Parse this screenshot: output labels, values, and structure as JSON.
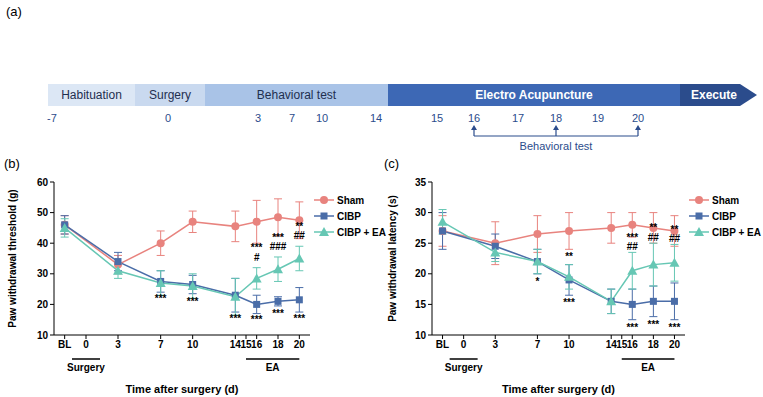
{
  "timeline": {
    "label": "(a)",
    "segments": [
      "Habituation",
      "Surgery",
      "Behavioral test",
      "Electro Acupuncture",
      "Execute"
    ],
    "days": [
      -7,
      0,
      3,
      7,
      10,
      14,
      15,
      16,
      17,
      18,
      19,
      20
    ],
    "bracket": {
      "label": "Behavioral test",
      "marks": [
        16,
        18,
        20
      ]
    }
  },
  "chart_data": [
    {
      "type": "line",
      "title": "(b)",
      "x_label": "Time after surgery (d)",
      "y_label": "Paw withdrawal threshold (g)",
      "x": [
        -2,
        3,
        7,
        10,
        14,
        16,
        18,
        20
      ],
      "xlim": [
        -3,
        21
      ],
      "xticks": [
        {
          "value": -2,
          "label": "BL"
        },
        0,
        3,
        7,
        10,
        14,
        15,
        16,
        18,
        20
      ],
      "ylim": [
        10,
        60
      ],
      "yticks": [
        10,
        20,
        30,
        40,
        50,
        60
      ],
      "grid": false,
      "legend": "right",
      "series": [
        {
          "name": "Sham",
          "color": "#E8837E",
          "marker": "circle",
          "values": [
            46,
            33,
            40,
            47,
            45.5,
            47,
            48.5,
            47.5
          ],
          "errors": [
            3,
            3,
            4,
            3.5,
            5,
            7,
            6,
            6
          ]
        },
        {
          "name": "CIBP",
          "color": "#4A6DA8",
          "marker": "square",
          "values": [
            46,
            34,
            27.5,
            26.5,
            23,
            20,
            21,
            21.5
          ],
          "errors": [
            3,
            3,
            3.5,
            3,
            5.5,
            3,
            1.5,
            4
          ]
        },
        {
          "name": "CIBP + EA",
          "color": "#66C7B4",
          "marker": "triangle",
          "values": [
            45,
            31,
            27,
            26,
            22.5,
            28.5,
            31.5,
            35
          ],
          "errors": [
            3,
            2.5,
            4,
            4,
            6,
            3.5,
            4,
            4
          ]
        }
      ],
      "annotations": [
        {
          "x": 7,
          "y": 22,
          "text": "***"
        },
        {
          "x": 10,
          "y": 21,
          "text": "***"
        },
        {
          "x": 14,
          "y": 15.5,
          "text": "***"
        },
        {
          "x": 16,
          "y": 38.5,
          "text": "***"
        },
        {
          "x": 16,
          "y": 35.5,
          "text": "#"
        },
        {
          "x": 16,
          "y": 15,
          "text": "***"
        },
        {
          "x": 18,
          "y": 42,
          "text": "***"
        },
        {
          "x": 18,
          "y": 39,
          "text": "###"
        },
        {
          "x": 18,
          "y": 17,
          "text": "***"
        },
        {
          "x": 20,
          "y": 45.5,
          "text": "**"
        },
        {
          "x": 20,
          "y": 42.5,
          "text": "##"
        },
        {
          "x": 20,
          "y": 15.5,
          "text": "***"
        }
      ],
      "periods": [
        {
          "label": "Surgery",
          "from": 0,
          "to": 0
        },
        {
          "label": "EA",
          "from": 15,
          "to": 20
        }
      ]
    },
    {
      "type": "line",
      "title": "(c)",
      "x_label": "Time after surgery (d)",
      "y_label": "Paw withdrawal latency (s)",
      "x": [
        -2,
        3,
        7,
        10,
        14,
        16,
        18,
        20
      ],
      "xlim": [
        -3,
        21
      ],
      "xticks": [
        {
          "value": -2,
          "label": "BL"
        },
        0,
        3,
        7,
        10,
        14,
        15,
        16,
        18,
        20
      ],
      "ylim": [
        10,
        35
      ],
      "yticks": [
        10,
        15,
        20,
        25,
        30,
        35
      ],
      "grid": false,
      "legend": "right",
      "series": [
        {
          "name": "Sham",
          "color": "#E8837E",
          "marker": "circle",
          "values": [
            27,
            25,
            26.5,
            27,
            27.5,
            28,
            27.5,
            27
          ],
          "errors": [
            2.5,
            3.5,
            3,
            3,
            2.5,
            2,
            2.5,
            2.5
          ]
        },
        {
          "name": "CIBP",
          "color": "#4A6DA8",
          "marker": "square",
          "values": [
            27,
            24.5,
            22,
            19,
            15.5,
            15,
            15.5,
            15.5
          ],
          "errors": [
            3,
            2,
            2,
            2.5,
            2,
            2.5,
            2.5,
            3
          ]
        },
        {
          "name": "CIBP + EA",
          "color": "#66C7B4",
          "marker": "triangle",
          "values": [
            28.5,
            23.5,
            22,
            19.5,
            15.5,
            20.5,
            21.5,
            21.8
          ],
          "errors": [
            2,
            1.5,
            2,
            2,
            2,
            3,
            3.5,
            3
          ]
        }
      ],
      "annotations": [
        {
          "x": 7,
          "y": 18.8,
          "text": "*"
        },
        {
          "x": 10,
          "y": 22.8,
          "text": "**"
        },
        {
          "x": 10,
          "y": 15.4,
          "text": "***"
        },
        {
          "x": 16,
          "y": 26,
          "text": "***"
        },
        {
          "x": 16,
          "y": 24.5,
          "text": "##"
        },
        {
          "x": 16,
          "y": 11.3,
          "text": "***"
        },
        {
          "x": 18,
          "y": 27.5,
          "text": "**"
        },
        {
          "x": 18,
          "y": 26,
          "text": "##"
        },
        {
          "x": 18,
          "y": 11.8,
          "text": "***"
        },
        {
          "x": 20,
          "y": 27.3,
          "text": "**"
        },
        {
          "x": 20,
          "y": 25.8,
          "text": "##"
        },
        {
          "x": 20,
          "y": 11.3,
          "text": "***"
        }
      ],
      "periods": [
        {
          "label": "Surgery",
          "from": 0,
          "to": 0
        },
        {
          "label": "EA",
          "from": 15,
          "to": 20
        }
      ]
    }
  ]
}
